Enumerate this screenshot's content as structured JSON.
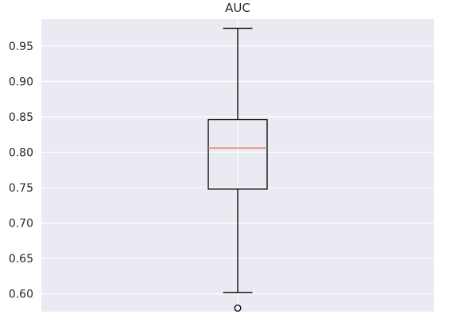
{
  "chart_data": {
    "type": "boxplot",
    "title": "AUC",
    "xlabel": "",
    "ylabel": "",
    "ylim": [
      0.575,
      0.988
    ],
    "yticks": [
      0.6,
      0.65,
      0.7,
      0.75,
      0.8,
      0.85,
      0.9,
      0.95
    ],
    "ytick_labels": [
      "0.60",
      "0.65",
      "0.70",
      "0.75",
      "0.80",
      "0.85",
      "0.90",
      "0.95"
    ],
    "grid": true,
    "boxes": [
      {
        "whisker_low": 0.602,
        "q1": 0.748,
        "median": 0.806,
        "q3": 0.846,
        "whisker_high": 0.975,
        "outliers": [
          0.58
        ]
      }
    ],
    "colors": {
      "background": "#eaeaf2",
      "grid": "#ffffff",
      "box": "#000000",
      "median": "#e07b54",
      "text": "#262626"
    }
  }
}
